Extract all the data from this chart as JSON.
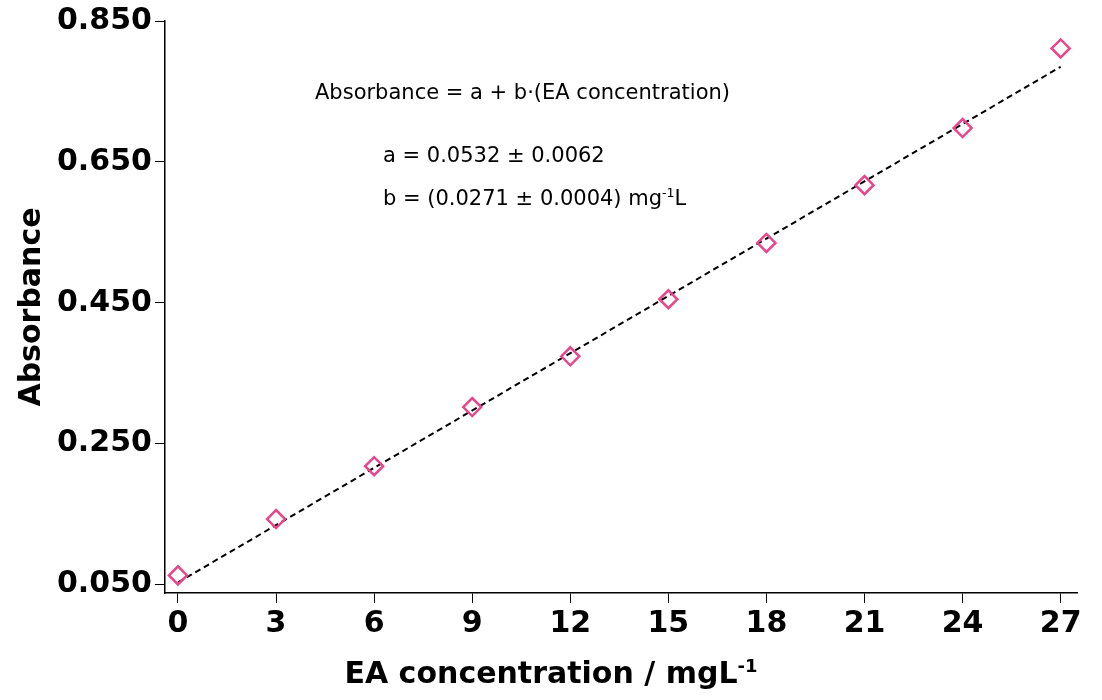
{
  "chart_data": {
    "type": "scatter",
    "xlabel": "EA concentration / mgL$^{-1}$",
    "ylabel": "Absorbance",
    "annotations": [
      "Absorbance = a + b·(EA concentration)",
      "a = 0.0532 ± 0.0062",
      "b = (0.0271 ± 0.0004) mg$^{-1}$L"
    ],
    "x": [
      0,
      3,
      6,
      9,
      12,
      15,
      18,
      21,
      24,
      27
    ],
    "series": [
      {
        "color": "#e8458b",
        "marker": "diamond",
        "values": [
          0.063,
          0.143,
          0.218,
          0.302,
          0.374,
          0.455,
          0.535,
          0.617,
          0.698,
          0.811
        ]
      },
      {
        "type": "line",
        "color": "#000000",
        "marker": "none",
        "line_style": "dashed",
        "x": [
          0,
          27
        ],
        "values": [
          0.053,
          0.785
        ]
      }
    ],
    "xlim": [
      -0.4,
      27.5
    ],
    "xticks": [
      0,
      3,
      6,
      9,
      12,
      15,
      18,
      21,
      24,
      27
    ],
    "ylim": [
      0.038,
      0.85
    ],
    "yticks": [
      {
        "value": 0.05,
        "label": "0.050"
      },
      {
        "value": 0.25,
        "label": "0.250"
      },
      {
        "value": 0.45,
        "label": "0.450"
      },
      {
        "value": 0.65,
        "label": "0.650"
      },
      {
        "value": 0.85,
        "label": "0.850"
      }
    ],
    "grid": false,
    "legend": false
  }
}
